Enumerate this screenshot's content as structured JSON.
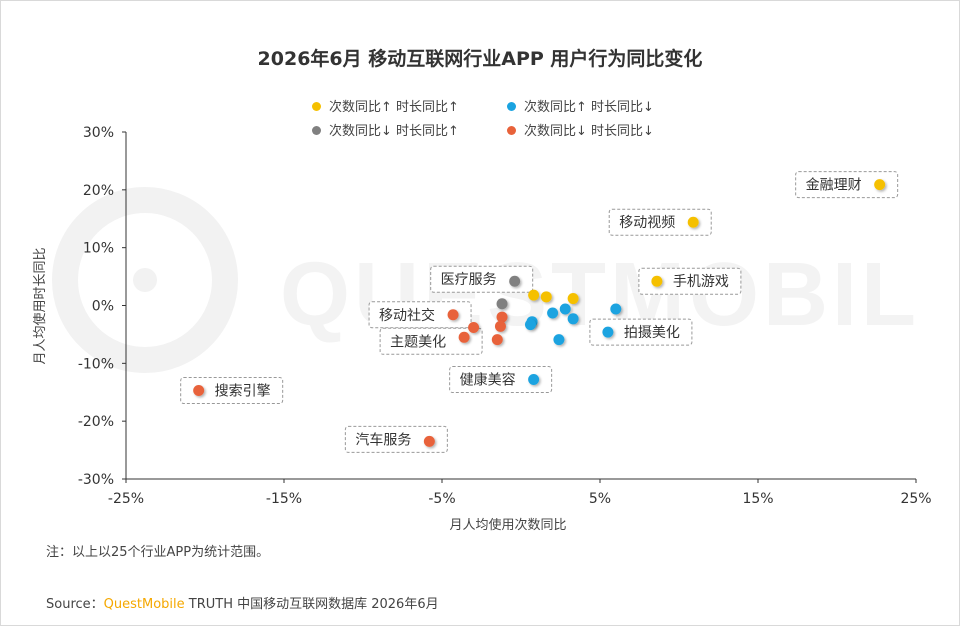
{
  "title": "2026年6月 移动互联网行业APP 用户行为同比变化",
  "legend": [
    {
      "label": "次数同比↑ 时长同比↑",
      "color": "#f5c000"
    },
    {
      "label": "次数同比↑ 时长同比↓",
      "color": "#1aa3e0"
    },
    {
      "label": "次数同比↓ 时长同比↑",
      "color": "#808080"
    },
    {
      "label": "次数同比↓ 时长同比↓",
      "color": "#e8623a"
    }
  ],
  "note": "注：以上以25个行业APP为统计范围。",
  "source": {
    "prefix": "Source：",
    "brand": "QuestMobile",
    "suffix": " TRUTH 中国移动互联网数据库 2026年6月"
  },
  "watermark": "QUESTMOBILE",
  "chart_data": {
    "type": "scatter",
    "title": "2026年6月 移动互联网行业APP 用户行为同比变化",
    "xlabel": "月人均使用次数同比",
    "ylabel": "月人均使用时长同比",
    "xlim": [
      -25,
      25
    ],
    "ylim": [
      -30,
      30
    ],
    "x_ticks": [
      "-25%",
      "-15%",
      "-5%",
      "5%",
      "15%",
      "25%"
    ],
    "y_ticks": [
      "30%",
      "20%",
      "10%",
      "0%",
      "-10%",
      "-20%",
      "-30%"
    ],
    "grid": false,
    "legend_position": "top",
    "series": [
      {
        "name": "次数同比↑ 时长同比↑",
        "color": "#f5c000",
        "points": [
          {
            "x": 22.7,
            "y": 20.9,
            "label": "金融理财"
          },
          {
            "x": 10.9,
            "y": 14.4,
            "label": "移动视频"
          },
          {
            "x": 8.6,
            "y": 4.2,
            "label": "手机游戏"
          },
          {
            "x": 0.8,
            "y": 1.8
          },
          {
            "x": 1.6,
            "y": 1.5
          },
          {
            "x": 3.3,
            "y": 1.2
          }
        ]
      },
      {
        "name": "次数同比↑ 时长同比↓",
        "color": "#1aa3e0",
        "points": [
          {
            "x": 6.0,
            "y": -0.6
          },
          {
            "x": 5.5,
            "y": -4.6,
            "label": "拍摄美化"
          },
          {
            "x": 0.8,
            "y": -12.8,
            "label": "健康美容"
          },
          {
            "x": 2.8,
            "y": -0.6
          },
          {
            "x": 2.0,
            "y": -1.3
          },
          {
            "x": 0.7,
            "y": -2.8
          },
          {
            "x": 0.6,
            "y": -3.3
          },
          {
            "x": 3.3,
            "y": -2.3
          },
          {
            "x": 2.4,
            "y": -5.9
          }
        ]
      },
      {
        "name": "次数同比↓ 时长同比↑",
        "color": "#808080",
        "points": [
          {
            "x": -0.4,
            "y": 4.2,
            "label": "医疗服务"
          },
          {
            "x": -1.2,
            "y": 0.3
          }
        ]
      },
      {
        "name": "次数同比↓ 时长同比↓",
        "color": "#e8623a",
        "points": [
          {
            "x": -4.3,
            "y": -1.6,
            "label": "移动社交"
          },
          {
            "x": -3.6,
            "y": -5.5,
            "label": "主题美化"
          },
          {
            "x": -20.4,
            "y": -14.7,
            "label": "搜索引擎"
          },
          {
            "x": -5.8,
            "y": -23.5,
            "label": "汽车服务"
          },
          {
            "x": -3.0,
            "y": -3.8
          },
          {
            "x": -1.2,
            "y": -2.0
          },
          {
            "x": -1.3,
            "y": -3.6
          },
          {
            "x": -1.5,
            "y": -5.9
          }
        ]
      }
    ]
  }
}
